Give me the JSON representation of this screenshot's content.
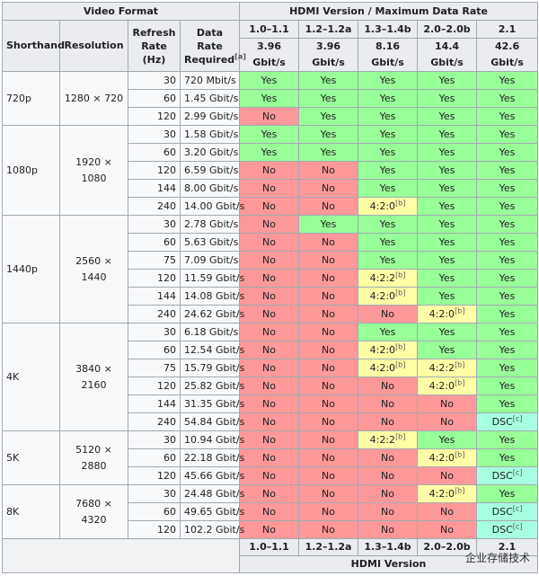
{
  "header": {
    "video_format": "Video Format",
    "hdmi_group": "HDMI Version / Maximum Data Rate",
    "shorthand": "Shorthand",
    "resolution": "Resolution",
    "refresh_rate": "Refresh Rate (Hz)",
    "data_rate": "Data Rate Required",
    "data_rate_note": "[a]",
    "versions": [
      "1.0–1.1",
      "1.2–1.2a",
      "1.3–1.4b",
      "2.0–2.0b",
      "2.1"
    ],
    "max_rates": [
      "3.96 Gbit/s",
      "3.96 Gbit/s",
      "8.16 Gbit/s",
      "14.4 Gbit/s",
      "42.6 Gbit/s"
    ]
  },
  "groups": [
    {
      "shorthand": "720p",
      "resolution": "1280 × 720",
      "rows": [
        {
          "hz": "30",
          "rate": "720 Mbit/s",
          "cells": [
            "Yes",
            "Yes",
            "Yes",
            "Yes",
            "Yes"
          ]
        },
        {
          "hz": "60",
          "rate": "1.45 Gbit/s",
          "cells": [
            "Yes",
            "Yes",
            "Yes",
            "Yes",
            "Yes"
          ]
        },
        {
          "hz": "120",
          "rate": "2.99 Gbit/s",
          "cells": [
            "No",
            "Yes",
            "Yes",
            "Yes",
            "Yes"
          ]
        }
      ]
    },
    {
      "shorthand": "1080p",
      "resolution": "1920 × 1080",
      "rows": [
        {
          "hz": "30",
          "rate": "1.58 Gbit/s",
          "cells": [
            "Yes",
            "Yes",
            "Yes",
            "Yes",
            "Yes"
          ]
        },
        {
          "hz": "60",
          "rate": "3.20 Gbit/s",
          "cells": [
            "Yes",
            "Yes",
            "Yes",
            "Yes",
            "Yes"
          ]
        },
        {
          "hz": "120",
          "rate": "6.59 Gbit/s",
          "cells": [
            "No",
            "No",
            "Yes",
            "Yes",
            "Yes"
          ]
        },
        {
          "hz": "144",
          "rate": "8.00 Gbit/s",
          "cells": [
            "No",
            "No",
            "Yes",
            "Yes",
            "Yes"
          ]
        },
        {
          "hz": "240",
          "rate": "14.00 Gbit/s",
          "cells": [
            "No",
            "No",
            "4:2:0[b]",
            "Yes",
            "Yes"
          ]
        }
      ]
    },
    {
      "shorthand": "1440p",
      "resolution": "2560 × 1440",
      "rows": [
        {
          "hz": "30",
          "rate": "2.78 Gbit/s",
          "cells": [
            "No",
            "Yes",
            "Yes",
            "Yes",
            "Yes"
          ]
        },
        {
          "hz": "60",
          "rate": "5.63 Gbit/s",
          "cells": [
            "No",
            "No",
            "Yes",
            "Yes",
            "Yes"
          ]
        },
        {
          "hz": "75",
          "rate": "7.09 Gbit/s",
          "cells": [
            "No",
            "No",
            "Yes",
            "Yes",
            "Yes"
          ]
        },
        {
          "hz": "120",
          "rate": "11.59 Gbit/s",
          "cells": [
            "No",
            "No",
            "4:2:2[b]",
            "Yes",
            "Yes"
          ]
        },
        {
          "hz": "144",
          "rate": "14.08 Gbit/s",
          "cells": [
            "No",
            "No",
            "4:2:0[b]",
            "Yes",
            "Yes"
          ]
        },
        {
          "hz": "240",
          "rate": "24.62 Gbit/s",
          "cells": [
            "No",
            "No",
            "No",
            "4:2:0[b]",
            "Yes"
          ]
        }
      ]
    },
    {
      "shorthand": "4K",
      "resolution": "3840 × 2160",
      "rows": [
        {
          "hz": "30",
          "rate": "6.18 Gbit/s",
          "cells": [
            "No",
            "No",
            "Yes",
            "Yes",
            "Yes"
          ]
        },
        {
          "hz": "60",
          "rate": "12.54 Gbit/s",
          "cells": [
            "No",
            "No",
            "4:2:0[b]",
            "Yes",
            "Yes"
          ]
        },
        {
          "hz": "75",
          "rate": "15.79 Gbit/s",
          "cells": [
            "No",
            "No",
            "4:2:0[b]",
            "4:2:2[b]",
            "Yes"
          ]
        },
        {
          "hz": "120",
          "rate": "25.82 Gbit/s",
          "cells": [
            "No",
            "No",
            "No",
            "4:2:0[b]",
            "Yes"
          ]
        },
        {
          "hz": "144",
          "rate": "31.35 Gbit/s",
          "cells": [
            "No",
            "No",
            "No",
            "No",
            "Yes"
          ]
        },
        {
          "hz": "240",
          "rate": "54.84 Gbit/s",
          "cells": [
            "No",
            "No",
            "No",
            "No",
            "DSC[c]"
          ]
        }
      ]
    },
    {
      "shorthand": "5K",
      "resolution": "5120 × 2880",
      "rows": [
        {
          "hz": "30",
          "rate": "10.94 Gbit/s",
          "cells": [
            "No",
            "No",
            "4:2:2[b]",
            "Yes",
            "Yes"
          ]
        },
        {
          "hz": "60",
          "rate": "22.18 Gbit/s",
          "cells": [
            "No",
            "No",
            "No",
            "4:2:0[b]",
            "Yes"
          ]
        },
        {
          "hz": "120",
          "rate": "45.66 Gbit/s",
          "cells": [
            "No",
            "No",
            "No",
            "No",
            "DSC[c]"
          ]
        }
      ]
    },
    {
      "shorthand": "8K",
      "resolution": "7680 × 4320",
      "rows": [
        {
          "hz": "30",
          "rate": "24.48 Gbit/s",
          "cells": [
            "No",
            "No",
            "No",
            "4:2:0[b]",
            "Yes"
          ]
        },
        {
          "hz": "60",
          "rate": "49.65 Gbit/s",
          "cells": [
            "No",
            "No",
            "No",
            "No",
            "DSC[c]"
          ]
        },
        {
          "hz": "120",
          "rate": "102.2 Gbit/s",
          "cells": [
            "No",
            "No",
            "No",
            "No",
            "DSC[c]"
          ]
        }
      ]
    }
  ],
  "footer": {
    "versions": [
      "1.0–1.1",
      "1.2–1.2a",
      "1.3–1.4b",
      "2.0–2.0b",
      "2.1"
    ],
    "label": "HDMI Version"
  },
  "watermark": "企业存储技术",
  "colors": {
    "yes": "#99ff99",
    "no": "#ff9999",
    "partial": "#ffffa8",
    "dsc": "#a8ffe0",
    "header": "#eaecf0"
  }
}
